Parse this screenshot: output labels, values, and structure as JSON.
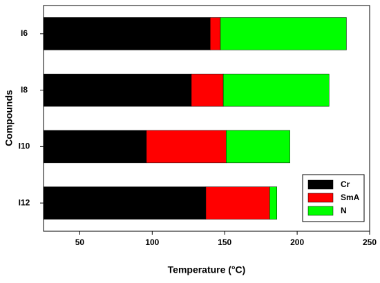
{
  "chart_data": {
    "type": "stacked-barh",
    "categories": [
      "I6",
      "I8",
      "I10",
      "I12"
    ],
    "series": [
      {
        "name": "Cr",
        "color": "#000000",
        "values": [
          140,
          127,
          96,
          137
        ]
      },
      {
        "name": "SmA",
        "color": "#ff0000",
        "values": [
          7,
          22,
          55,
          44
        ]
      },
      {
        "name": "N",
        "color": "#00ff00",
        "values": [
          87,
          73,
          44,
          5
        ]
      }
    ],
    "xlabel": "Temperature (°C)",
    "ylabel": "Compounds",
    "xlim": [
      25,
      250
    ],
    "xticks": [
      50,
      100,
      150,
      200,
      250
    ],
    "grid": false,
    "legend": "lower right"
  }
}
